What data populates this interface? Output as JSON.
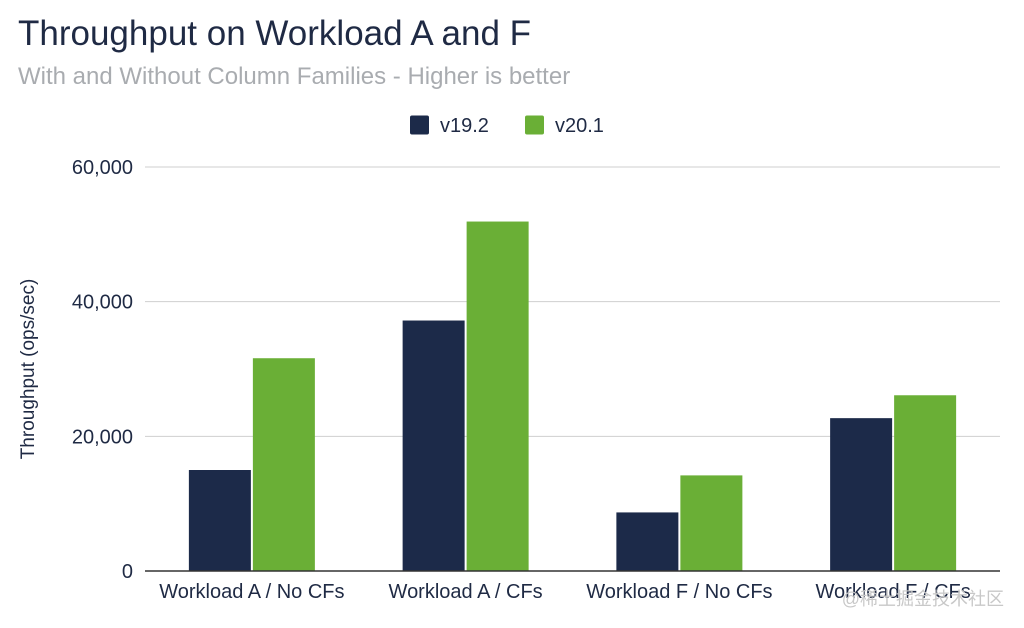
{
  "chart_data": {
    "type": "bar",
    "title": "Throughput on Workload A and F",
    "subtitle": "With and Without Column Families - Higher is better",
    "ylabel": "Throughput (ops/sec)",
    "xlabel": "",
    "categories": [
      "Workload A / No CFs",
      "Workload A / CFs",
      "Workload F / No CFs",
      "Workload F / CFs"
    ],
    "series": [
      {
        "name": "v19.2",
        "color": "#1c2a49",
        "values": [
          15000,
          37200,
          8700,
          22700
        ]
      },
      {
        "name": "v20.1",
        "color": "#6aaf36",
        "values": [
          31600,
          51900,
          14200,
          26100
        ]
      }
    ],
    "ylim": [
      0,
      60000
    ],
    "yticks": [
      0,
      20000,
      40000,
      60000
    ],
    "ytick_labels": [
      "0",
      "20,000",
      "40,000",
      "60,000"
    ],
    "grid": true,
    "legend_position": "top-center"
  },
  "watermark": "@稀土掘金技术社区"
}
